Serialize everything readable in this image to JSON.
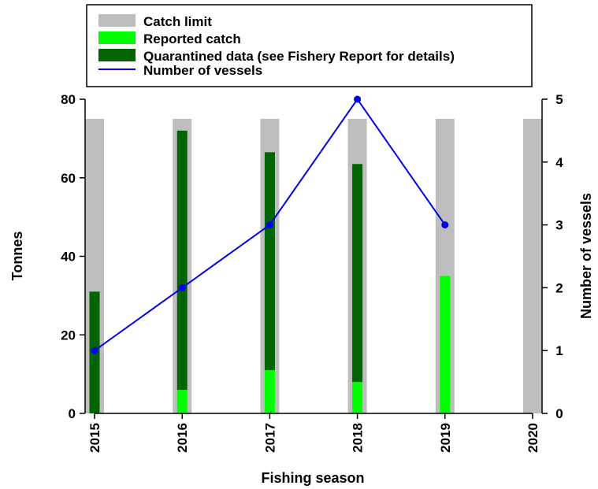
{
  "chart_data": {
    "type": "bar",
    "categories": [
      "2015",
      "2016",
      "2017",
      "2018",
      "2019",
      "2020"
    ],
    "xlabel": "Fishing season",
    "ylabel": "Tonnes",
    "y2label": "Number of vessels",
    "ylim": [
      0,
      80
    ],
    "y2lim": [
      0,
      5
    ],
    "yticks": [
      "0",
      "20",
      "40",
      "60",
      "80"
    ],
    "y2ticks": [
      "0",
      "1",
      "2",
      "3",
      "4",
      "5"
    ],
    "legend_position": "top",
    "series": [
      {
        "name": "Catch limit",
        "color": "#bebebe",
        "values": [
          75,
          75,
          75,
          75,
          75,
          75
        ]
      },
      {
        "name": "Reported catch",
        "color": "#00ff00",
        "values": [
          0,
          6,
          11,
          8,
          35,
          0
        ]
      },
      {
        "name": "Quarantined data (see Fishery Report for details)",
        "color": "#006400",
        "values": [
          31,
          66,
          55.5,
          55.5,
          0,
          0
        ]
      }
    ],
    "line_series": {
      "name": "Number of vessels",
      "color": "#0000ee",
      "axis": "right",
      "values": [
        1,
        2,
        3,
        5,
        3,
        null
      ]
    }
  }
}
